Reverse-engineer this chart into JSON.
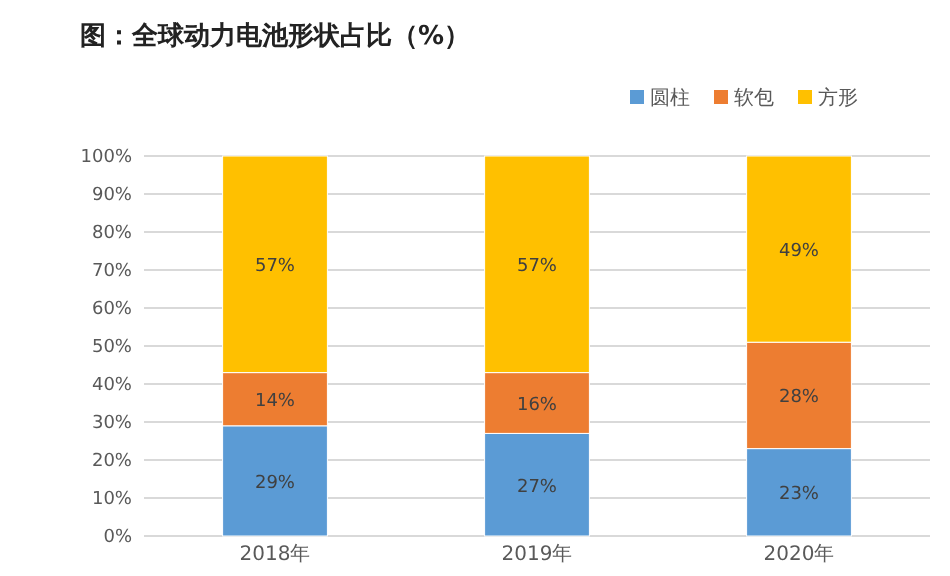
{
  "chart_data": {
    "type": "bar",
    "title": "图：全球动力电池形状占比（%）",
    "stacked": true,
    "categories": [
      "2018年",
      "2019年",
      "2020年"
    ],
    "series": [
      {
        "name": "圆柱",
        "color": "#5b9bd5",
        "values": [
          29,
          27,
          23
        ],
        "value_labels": [
          "29%",
          "27%",
          "23%"
        ]
      },
      {
        "name": "软包",
        "color": "#ed7d31",
        "values": [
          14,
          16,
          28
        ],
        "value_labels": [
          "14%",
          "16%",
          "28%"
        ]
      },
      {
        "name": "方形",
        "color": "#ffc000",
        "values": [
          57,
          57,
          49
        ],
        "value_labels": [
          "57%",
          "57%",
          "49%"
        ]
      }
    ],
    "ylim": [
      0,
      100
    ],
    "yticks": [
      {
        "value": 0,
        "label": "0%"
      },
      {
        "value": 10,
        "label": "10%"
      },
      {
        "value": 20,
        "label": "20%"
      },
      {
        "value": 30,
        "label": "30%"
      },
      {
        "value": 40,
        "label": "40%"
      },
      {
        "value": 50,
        "label": "50%"
      },
      {
        "value": 60,
        "label": "60%"
      },
      {
        "value": 70,
        "label": "70%"
      },
      {
        "value": 80,
        "label": "80%"
      },
      {
        "value": 90,
        "label": "90%"
      },
      {
        "value": 100,
        "label": "100%"
      }
    ],
    "grid": "y",
    "legend": "top right"
  }
}
